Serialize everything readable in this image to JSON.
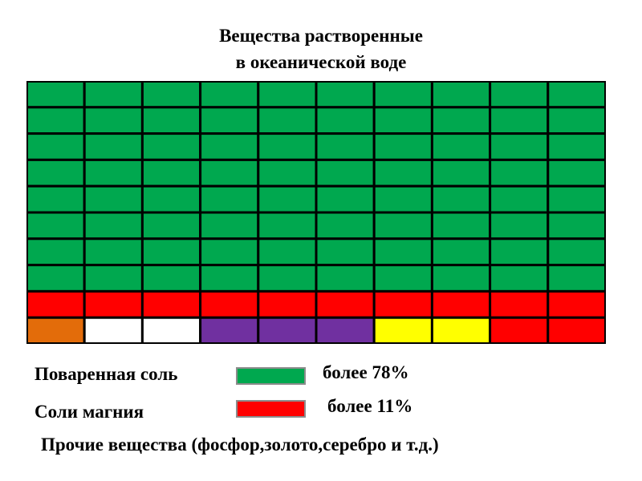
{
  "chart_data": {
    "type": "waffle",
    "title_lines": [
      "Вещества растворенные",
      "в океанической воде"
    ],
    "rows": 10,
    "cols": 10,
    "colors": {
      "salt": "#00a84f",
      "magnesium": "#ff0000",
      "orange": "#e36c0a",
      "white": "#ffffff",
      "purple": "#7030a0",
      "yellow": "#ffff00"
    },
    "grid": [
      [
        "salt",
        "salt",
        "salt",
        "salt",
        "salt",
        "salt",
        "salt",
        "salt",
        "salt",
        "salt"
      ],
      [
        "salt",
        "salt",
        "salt",
        "salt",
        "salt",
        "salt",
        "salt",
        "salt",
        "salt",
        "salt"
      ],
      [
        "salt",
        "salt",
        "salt",
        "salt",
        "salt",
        "salt",
        "salt",
        "salt",
        "salt",
        "salt"
      ],
      [
        "salt",
        "salt",
        "salt",
        "salt",
        "salt",
        "salt",
        "salt",
        "salt",
        "salt",
        "salt"
      ],
      [
        "salt",
        "salt",
        "salt",
        "salt",
        "salt",
        "salt",
        "salt",
        "salt",
        "salt",
        "salt"
      ],
      [
        "salt",
        "salt",
        "salt",
        "salt",
        "salt",
        "salt",
        "salt",
        "salt",
        "salt",
        "salt"
      ],
      [
        "salt",
        "salt",
        "salt",
        "salt",
        "salt",
        "salt",
        "salt",
        "salt",
        "salt",
        "salt"
      ],
      [
        "salt",
        "salt",
        "salt",
        "salt",
        "salt",
        "salt",
        "salt",
        "salt",
        "salt",
        "salt"
      ],
      [
        "magnesium",
        "magnesium",
        "magnesium",
        "magnesium",
        "magnesium",
        "magnesium",
        "magnesium",
        "magnesium",
        "magnesium",
        "magnesium"
      ],
      [
        "orange",
        "white",
        "white",
        "purple",
        "purple",
        "purple",
        "yellow",
        "yellow",
        "magnesium",
        "magnesium"
      ]
    ],
    "legend": [
      {
        "label": "Поваренная соль",
        "value_text": "более 78%",
        "color": "#00a84f"
      },
      {
        "label": "Соли магния",
        "value_text": "более 11%",
        "color": "#ff0000"
      }
    ],
    "note": "Прочие вещества (фосфор,золото,серебро и т.д.)"
  }
}
